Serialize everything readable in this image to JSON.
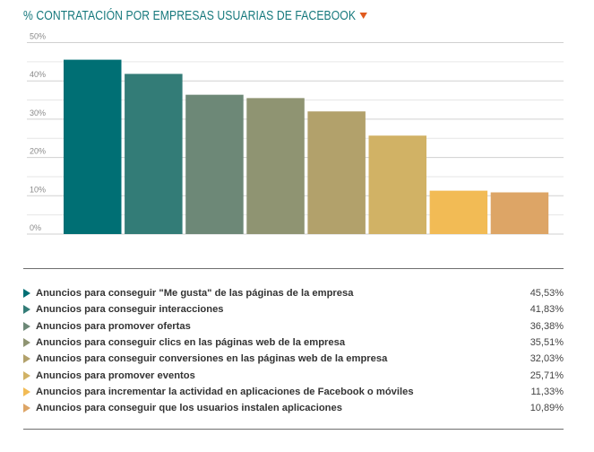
{
  "header": {
    "title": "% CONTRATACIÓN POR EMPRESAS USUARIAS DE FACEBOOK",
    "title_icon": "caret-down-icon",
    "accent": "#e05a1e"
  },
  "chart_data": {
    "type": "bar",
    "title": "% CONTRATACIÓN POR EMPRESAS USUARIAS DE FACEBOOK",
    "ylim": [
      0,
      50
    ],
    "yticks": [
      "0%",
      "10%",
      "20%",
      "30%",
      "40%",
      "50%"
    ],
    "grid": true,
    "categories": [
      "Anuncios para conseguir \"Me gusta\" de las páginas de la empresa",
      "Anuncios para conseguir interacciones",
      "Anuncios para promover ofertas",
      "Anuncios para conseguir clics en las páginas web de la empresa",
      "Anuncios para conseguir conversiones en las páginas web de la empresa",
      "Anuncios para promover eventos",
      "Anuncios para incrementar la actividad en aplicaciones de Facebook o móviles",
      "Anuncios para conseguir que los usuarios instalen aplicaciones"
    ],
    "values": [
      45.53,
      41.83,
      36.38,
      35.51,
      32.03,
      25.71,
      11.33,
      10.89
    ],
    "value_labels": [
      "45,53%",
      "41,83%",
      "36,38%",
      "35,51%",
      "32,03%",
      "25,71%",
      "11,33%",
      "10,89%"
    ],
    "colors": [
      "#006f74",
      "#337c77",
      "#6d8877",
      "#8f9472",
      "#b2a16b",
      "#d1b265",
      "#f2bb55",
      "#dda566"
    ]
  }
}
